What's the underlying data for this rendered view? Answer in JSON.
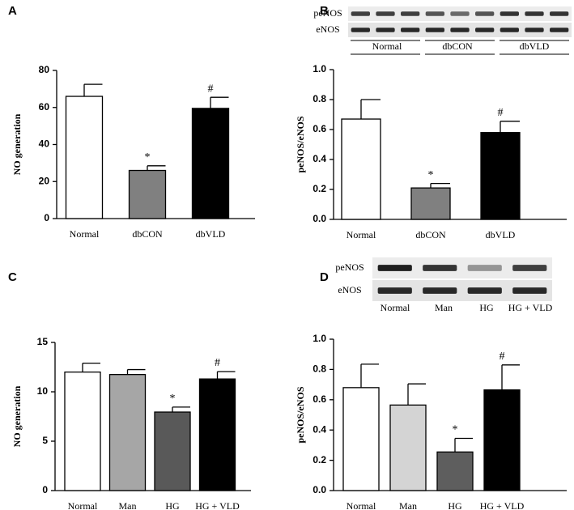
{
  "chart_data": [
    {
      "type": "bar",
      "panel": "A",
      "ylabel": "NO generation",
      "categories": [
        "Normal",
        "dbCON",
        "dbVLD"
      ],
      "values": [
        66,
        26,
        59.5
      ],
      "errors": [
        6.5,
        2.5,
        6
      ],
      "colors": [
        "#ffffff",
        "#808080",
        "#000000"
      ],
      "bar_labels": [
        null,
        "*",
        "#"
      ],
      "ylim": [
        0,
        80
      ],
      "yticks": [
        0,
        20,
        40,
        60,
        80
      ]
    },
    {
      "type": "bar",
      "panel": "B",
      "ylabel": "peNOS/eNOS",
      "categories": [
        "Normal",
        "dbCON",
        "dbVLD"
      ],
      "values": [
        0.67,
        0.21,
        0.58
      ],
      "errors": [
        0.13,
        0.03,
        0.075
      ],
      "colors": [
        "#ffffff",
        "#808080",
        "#000000"
      ],
      "bar_labels": [
        null,
        "*",
        "#"
      ],
      "ylim": [
        0,
        1
      ],
      "yticks": [
        {
          "value": 0,
          "label": "0.0"
        },
        0.2,
        0.4,
        0.6,
        0.8,
        {
          "value": 1,
          "label": "1.0"
        }
      ],
      "blot": {
        "rows": [
          "peNOS",
          "eNOS"
        ],
        "lanes": [
          "Normal",
          "dbCON",
          "dbVLD"
        ]
      }
    },
    {
      "type": "bar",
      "panel": "C",
      "ylabel": "NO generation",
      "categories": [
        "Normal",
        "Man",
        "HG",
        "HG + VLD"
      ],
      "values": [
        12,
        11.75,
        7.95,
        11.3
      ],
      "errors": [
        0.9,
        0.5,
        0.5,
        0.75
      ],
      "colors": [
        "#ffffff",
        "#a6a6a6",
        "#595959",
        "#000000"
      ],
      "bar_labels": [
        null,
        null,
        "*",
        "#"
      ],
      "ylim": [
        0,
        15
      ],
      "yticks": [
        0,
        5,
        10,
        15
      ]
    },
    {
      "type": "bar",
      "panel": "D",
      "ylabel": "peNOS/eNOS",
      "categories": [
        "Normal",
        "Man",
        "HG",
        "HG + VLD"
      ],
      "values": [
        0.68,
        0.565,
        0.255,
        0.665
      ],
      "errors": [
        0.155,
        0.14,
        0.09,
        0.165
      ],
      "colors": [
        "#ffffff",
        "#d4d4d4",
        "#5e5e5e",
        "#000000"
      ],
      "bar_labels": [
        null,
        null,
        "*",
        "#"
      ],
      "ylim": [
        0,
        1
      ],
      "yticks": [
        {
          "value": 0,
          "label": "0.0"
        },
        0.2,
        0.4,
        0.6,
        0.8,
        {
          "value": 1,
          "label": "1.0"
        }
      ],
      "blot": {
        "rows": [
          "peNOS",
          "eNOS"
        ],
        "lanes": [
          "Normal",
          "Man",
          "HG",
          "HG + VLD"
        ]
      }
    }
  ]
}
